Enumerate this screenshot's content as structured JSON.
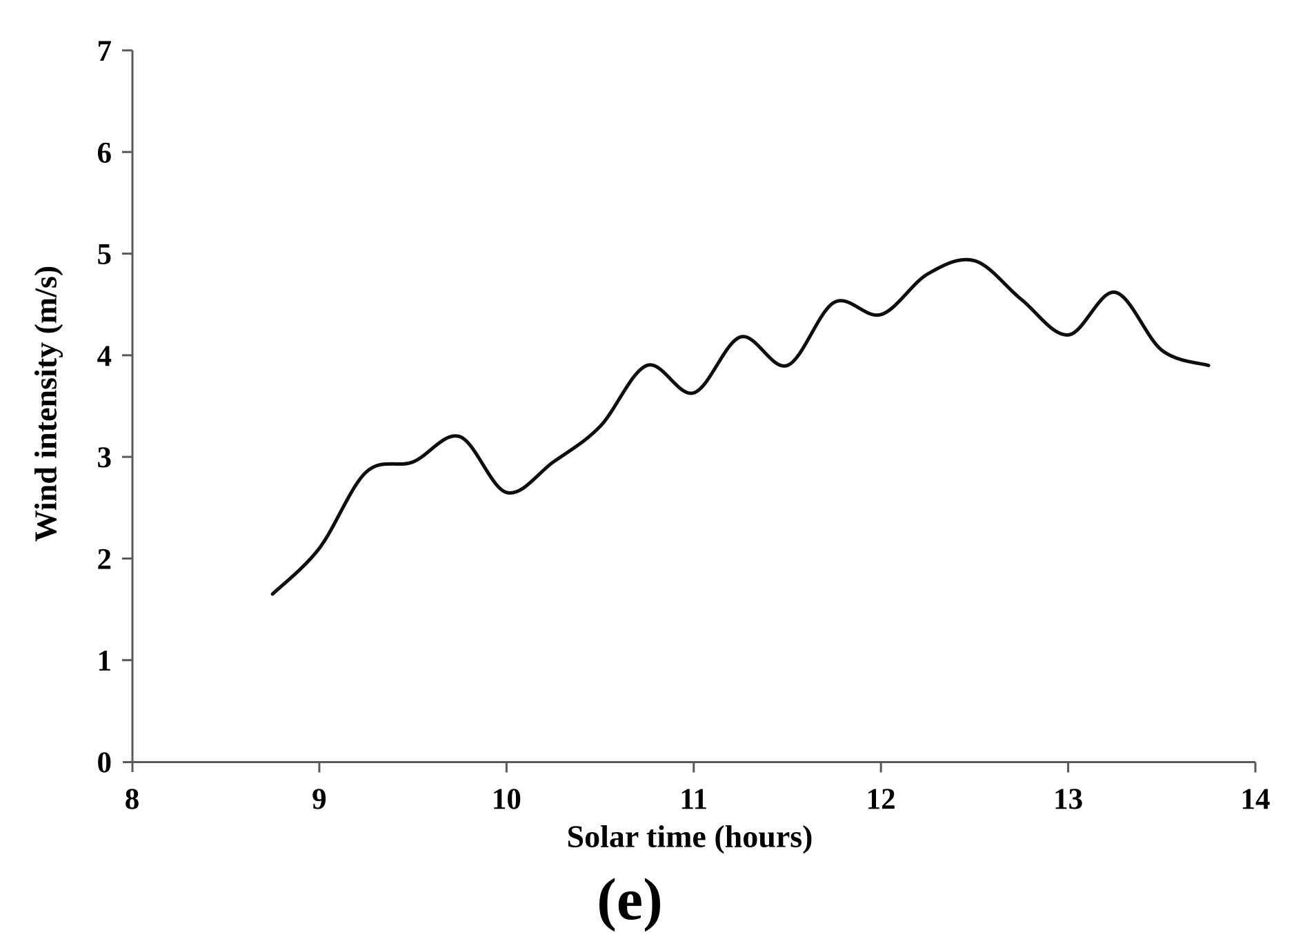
{
  "figure": {
    "caption": "(e)"
  },
  "chart_data": {
    "type": "line",
    "title": "",
    "xlabel": "Solar time (hours)",
    "ylabel": "Wind intensity (m/s)",
    "xlim": [
      8,
      14
    ],
    "ylim": [
      0,
      7
    ],
    "x_ticks": [
      8,
      9,
      10,
      11,
      12,
      13,
      14
    ],
    "y_ticks": [
      0,
      1,
      2,
      3,
      4,
      5,
      6,
      7
    ],
    "grid": false,
    "legend_position": "none",
    "line_color": "#0d0d0d",
    "axis_color": "#595959",
    "series": [
      {
        "name": "Wind intensity",
        "x": [
          8.75,
          9.0,
          9.25,
          9.5,
          9.75,
          10.0,
          10.25,
          10.5,
          10.75,
          11.0,
          11.25,
          11.5,
          11.75,
          12.0,
          12.25,
          12.5,
          12.75,
          13.0,
          13.25,
          13.5,
          13.75
        ],
        "values": [
          1.65,
          2.1,
          2.85,
          2.95,
          3.2,
          2.65,
          2.95,
          3.3,
          3.9,
          3.63,
          4.18,
          3.9,
          4.52,
          4.4,
          4.8,
          4.93,
          4.55,
          4.2,
          4.62,
          4.05,
          3.9
        ]
      }
    ]
  }
}
